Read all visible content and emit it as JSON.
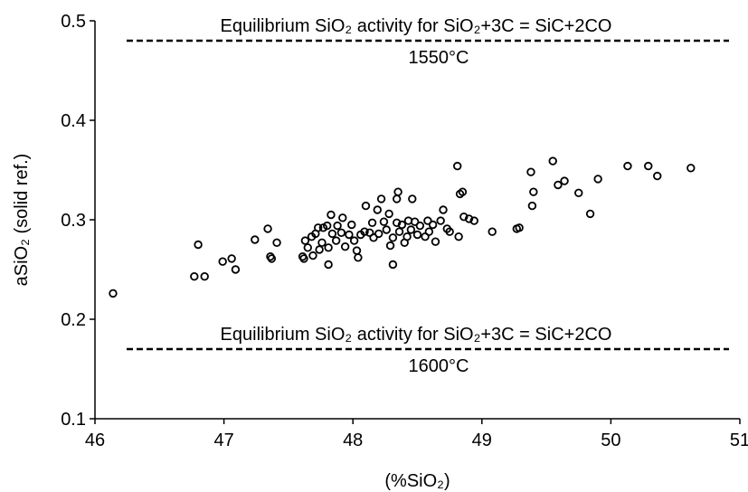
{
  "chart_data": {
    "type": "scatter",
    "x_label": "(%SiO₂)",
    "y_label": "aSiO₂ (solid ref.)",
    "xlim": [
      46,
      51
    ],
    "xticks": [
      46,
      47,
      48,
      49,
      50,
      51
    ],
    "ylim": [
      0.1,
      0.5
    ],
    "yticks": [
      0.1,
      0.2,
      0.3,
      0.4,
      0.5
    ],
    "grid": false,
    "color": "#000000",
    "x": [
      46.14,
      46.8,
      46.77,
      46.85,
      46.99,
      47.06,
      47.09,
      47.24,
      47.34,
      47.41,
      47.36,
      47.37,
      47.61,
      47.62,
      47.63,
      47.65,
      47.68,
      47.69,
      47.71,
      47.73,
      47.74,
      47.76,
      47.77,
      47.8,
      47.83,
      47.81,
      47.81,
      47.84,
      47.87,
      47.88,
      47.91,
      47.92,
      47.94,
      47.97,
      47.99,
      48.01,
      48.03,
      48.04,
      48.06,
      48.09,
      48.1,
      48.13,
      48.15,
      48.16,
      48.19,
      48.2,
      48.22,
      48.24,
      48.26,
      48.28,
      48.29,
      48.31,
      48.31,
      48.34,
      48.34,
      48.35,
      48.36,
      48.38,
      48.4,
      48.42,
      48.43,
      48.45,
      48.46,
      48.48,
      48.5,
      48.52,
      48.56,
      48.58,
      48.59,
      48.62,
      48.64,
      48.68,
      48.7,
      48.73,
      48.75,
      48.81,
      48.82,
      48.83,
      48.85,
      48.86,
      48.9,
      48.94,
      49.08,
      49.27,
      49.29,
      49.38,
      49.39,
      49.4,
      49.55,
      49.59,
      49.64,
      49.75,
      49.84,
      49.9,
      50.13,
      50.29,
      50.36,
      50.62
    ],
    "y": [
      0.226,
      0.275,
      0.243,
      0.243,
      0.258,
      0.261,
      0.25,
      0.28,
      0.291,
      0.277,
      0.263,
      0.261,
      0.263,
      0.261,
      0.279,
      0.272,
      0.283,
      0.264,
      0.286,
      0.292,
      0.27,
      0.277,
      0.292,
      0.294,
      0.305,
      0.272,
      0.255,
      0.286,
      0.279,
      0.294,
      0.287,
      0.302,
      0.273,
      0.285,
      0.295,
      0.279,
      0.269,
      0.262,
      0.285,
      0.288,
      0.314,
      0.287,
      0.297,
      0.282,
      0.31,
      0.286,
      0.321,
      0.298,
      0.29,
      0.306,
      0.274,
      0.282,
      0.255,
      0.297,
      0.321,
      0.328,
      0.288,
      0.295,
      0.277,
      0.283,
      0.299,
      0.29,
      0.321,
      0.298,
      0.285,
      0.294,
      0.283,
      0.299,
      0.288,
      0.295,
      0.278,
      0.299,
      0.31,
      0.291,
      0.288,
      0.354,
      0.283,
      0.326,
      0.328,
      0.303,
      0.301,
      0.299,
      0.288,
      0.291,
      0.292,
      0.348,
      0.314,
      0.328,
      0.359,
      0.335,
      0.339,
      0.327,
      0.306,
      0.341,
      0.354,
      0.354,
      0.344,
      0.352
    ],
    "reference_lines": [
      {
        "value": 0.48,
        "label": "Equilibrium SiO₂ activity for SiO₂+3C = SiC+2CO",
        "temperature": "1550°C"
      },
      {
        "value": 0.17,
        "label": "Equilibrium SiO₂ activity for SiO₂+3C = SiC+2CO",
        "temperature": "1600°C"
      }
    ]
  }
}
